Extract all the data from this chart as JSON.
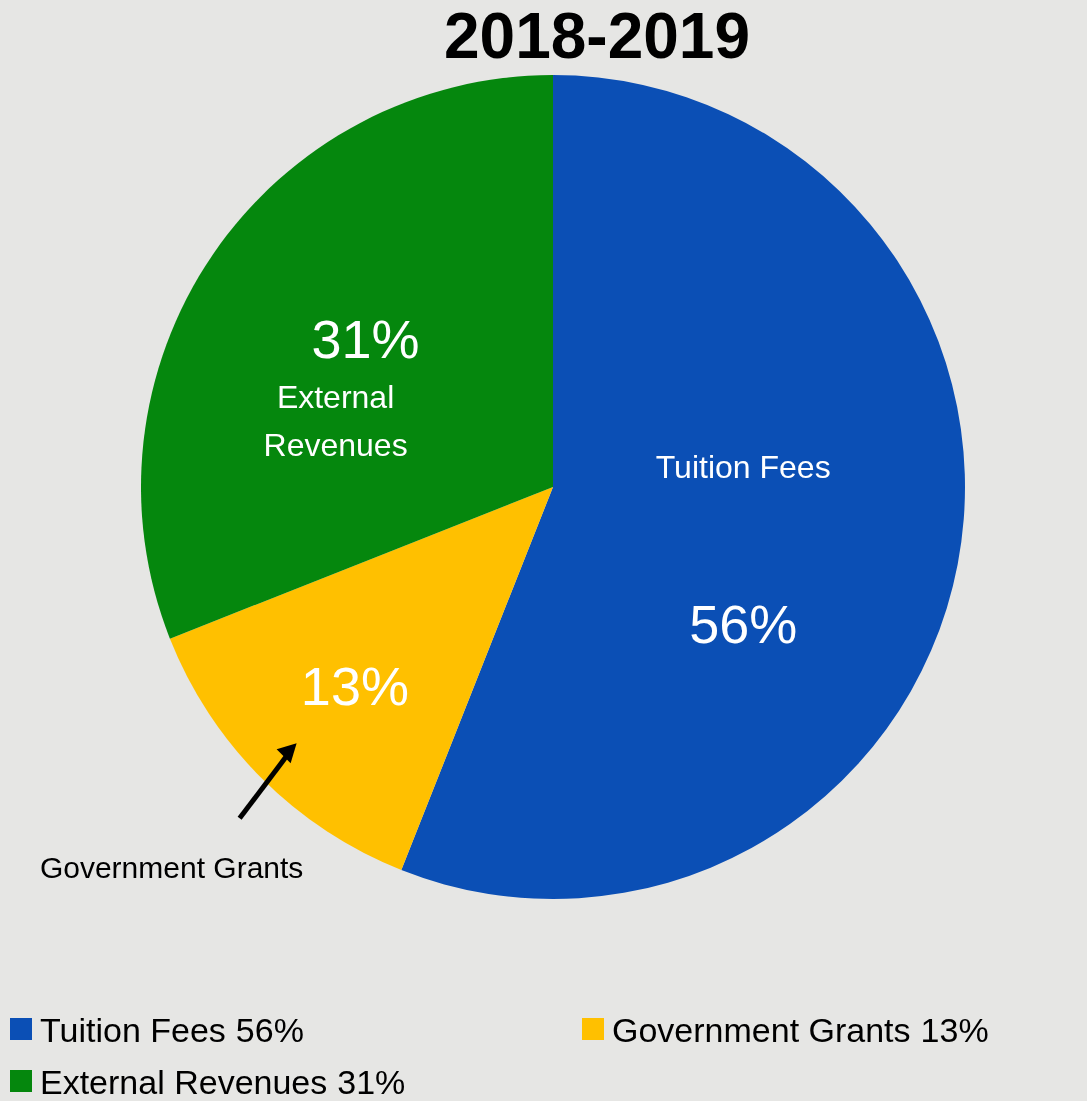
{
  "chart_data": {
    "type": "pie",
    "title": "2018-2019",
    "categories": [
      "Tuition Fees",
      "Government Grants",
      "External Revenues"
    ],
    "values": [
      56,
      13,
      31
    ],
    "value_labels": [
      "56%",
      "13%",
      "31%"
    ],
    "colors": [
      "#0b4fb5",
      "#ffc000",
      "#05870d"
    ],
    "legend": "bottom"
  }
}
